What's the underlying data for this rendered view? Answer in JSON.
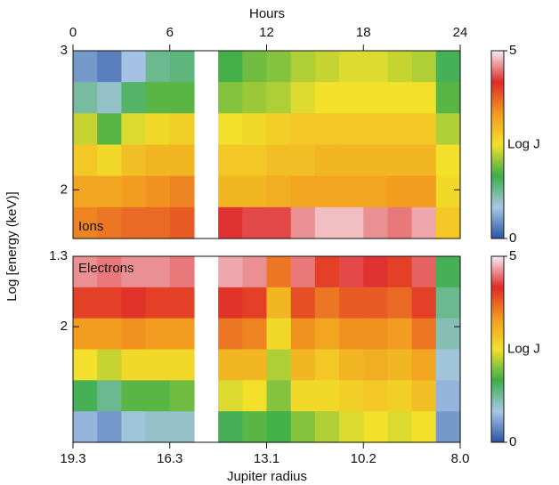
{
  "chart_data": [
    {
      "type": "heatmap",
      "label": "Ions",
      "xlabel": "Hours",
      "ylabel": "Log [energy (keV)]",
      "xlim": [
        0,
        24
      ],
      "xticks": [
        0,
        6,
        12,
        18,
        24
      ],
      "ylim": [
        1.65,
        3
      ],
      "yticks": [
        3,
        2
      ],
      "clim": [
        0,
        5
      ],
      "cticks": [
        0,
        5
      ],
      "clabel": "Log J",
      "colormap": [
        "#2a55a5",
        "#a9c6e6",
        "#3cae4a",
        "#f2e02a",
        "#f29a1f",
        "#e02a2a",
        "#f6eef2"
      ],
      "z": [
        [
          0.5,
          0.3,
          0.8,
          1.3,
          1.4,
          null,
          1.7,
          1.9,
          2.0,
          2.2,
          2.3,
          2.4,
          2.4,
          2.3,
          2.2,
          1.6
        ],
        [
          1.2,
          1.0,
          1.5,
          1.8,
          1.8,
          null,
          2.0,
          2.1,
          2.2,
          2.4,
          2.5,
          2.5,
          2.5,
          2.5,
          2.5,
          1.8
        ],
        [
          2.3,
          1.8,
          2.4,
          2.6,
          2.7,
          null,
          2.5,
          2.6,
          2.7,
          2.8,
          2.8,
          2.8,
          2.8,
          2.8,
          2.8,
          2.2
        ],
        [
          2.8,
          2.6,
          2.9,
          3.0,
          3.0,
          null,
          2.8,
          2.8,
          2.9,
          2.9,
          3.0,
          3.0,
          3.0,
          3.0,
          3.0,
          2.5
        ],
        [
          3.2,
          3.2,
          3.3,
          3.4,
          3.5,
          null,
          3.0,
          3.0,
          3.1,
          3.2,
          3.2,
          3.2,
          3.2,
          3.3,
          3.3,
          2.6
        ],
        [
          3.5,
          3.6,
          3.7,
          3.7,
          3.8,
          null,
          4.2,
          4.3,
          4.3,
          4.6,
          4.8,
          4.8,
          4.6,
          4.5,
          4.7,
          2.8
        ]
      ]
    },
    {
      "type": "heatmap",
      "label": "Electrons",
      "xlabel": "Jupiter radius",
      "xticklabels": [
        "19.3",
        "16.3",
        "13.1",
        "10.2",
        "8.0"
      ],
      "ylim": [
        3.15,
        1.3
      ],
      "yticks": [
        1.3,
        2
      ],
      "clim": [
        0,
        5
      ],
      "cticks": [
        0,
        5
      ],
      "clabel": "Log J",
      "z": [
        [
          4.6,
          4.5,
          4.6,
          4.6,
          4.5,
          null,
          4.7,
          4.6,
          3.6,
          4.5,
          4.0,
          4.3,
          4.2,
          4.0,
          4.4,
          1.6
        ],
        [
          4.0,
          4.0,
          4.1,
          4.0,
          4.0,
          null,
          4.1,
          4.0,
          3.0,
          3.9,
          3.6,
          3.8,
          3.8,
          3.7,
          4.0,
          1.3
        ],
        [
          3.3,
          3.3,
          3.4,
          3.3,
          3.3,
          null,
          3.6,
          3.5,
          2.6,
          3.4,
          3.2,
          3.4,
          3.4,
          3.3,
          3.6,
          1.1
        ],
        [
          2.5,
          2.3,
          2.6,
          2.6,
          2.6,
          null,
          3.0,
          3.0,
          2.2,
          3.0,
          2.8,
          3.0,
          3.1,
          3.0,
          3.2,
          0.9
        ],
        [
          1.6,
          1.3,
          1.8,
          1.8,
          1.9,
          null,
          2.4,
          2.5,
          2.0,
          2.6,
          2.6,
          2.7,
          2.8,
          2.7,
          2.9,
          0.7
        ],
        [
          0.7,
          0.5,
          0.9,
          1.0,
          1.0,
          null,
          1.6,
          1.8,
          1.7,
          2.0,
          2.2,
          2.4,
          2.5,
          2.4,
          2.5,
          0.5
        ]
      ]
    }
  ]
}
